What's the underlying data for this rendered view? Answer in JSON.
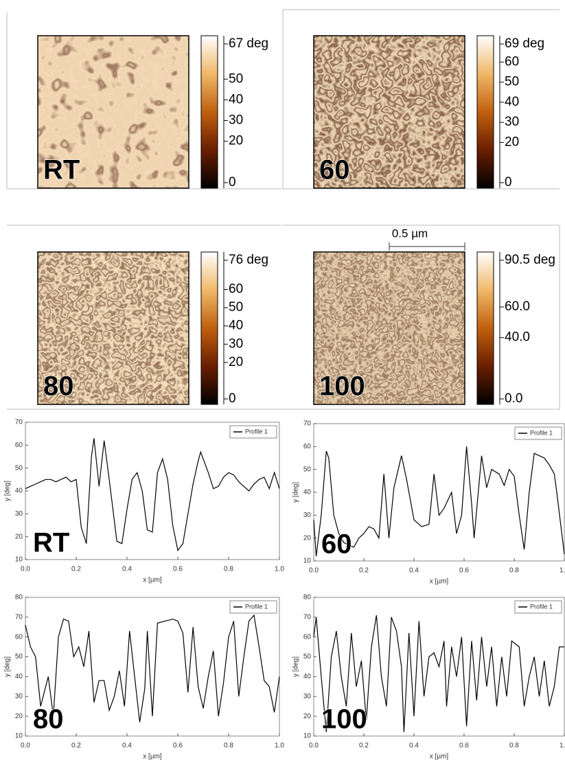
{
  "chart_data": [
    {
      "type": "image",
      "label": "RT",
      "clim": [
        0,
        67
      ],
      "cticks": [
        {
          "value": 67,
          "label": "67 deg"
        },
        50,
        40,
        30,
        20,
        0
      ]
    },
    {
      "type": "image",
      "label": "60",
      "clim": [
        0,
        69
      ],
      "cticks": [
        {
          "value": 69,
          "label": "69 deg"
        },
        60,
        50,
        40,
        30,
        20,
        0
      ]
    },
    {
      "type": "image",
      "label": "80",
      "clim": [
        0,
        76
      ],
      "cticks": [
        {
          "value": 76,
          "label": "76 deg"
        },
        60,
        50,
        40,
        30,
        20,
        0
      ]
    },
    {
      "type": "image",
      "label": "100",
      "scalebar": "0.5 µm",
      "clim": [
        0,
        90.5
      ],
      "cticks": [
        {
          "value": 90.5,
          "label": "90.5 deg"
        },
        {
          "value": 60,
          "label": "60.0"
        },
        {
          "value": 40,
          "label": "40.0"
        },
        {
          "value": 0,
          "label": "0.0"
        }
      ]
    },
    {
      "type": "line",
      "label": "RT",
      "xlabel": "x [µm]",
      "ylabel": "y [deg]",
      "xlim": [
        0,
        1.0
      ],
      "ylim": [
        10,
        70
      ],
      "xticks": [
        {
          "value": 0,
          "label": "0.0"
        },
        {
          "value": 0.2,
          "label": "0.2"
        },
        {
          "value": 0.4,
          "label": "0.4"
        },
        {
          "value": 0.6,
          "label": "0.6"
        },
        {
          "value": 0.8,
          "label": "0.8"
        },
        {
          "value": 1.0,
          "label": "1.0"
        }
      ],
      "yticks": [
        10,
        20,
        30,
        40,
        50,
        60,
        70
      ],
      "x": [
        0,
        0.02,
        0.04,
        0.06,
        0.08,
        0.1,
        0.12,
        0.14,
        0.16,
        0.18,
        0.2,
        0.22,
        0.24,
        0.26,
        0.27,
        0.29,
        0.31,
        0.33,
        0.36,
        0.38,
        0.4,
        0.42,
        0.44,
        0.46,
        0.48,
        0.5,
        0.52,
        0.54,
        0.56,
        0.58,
        0.6,
        0.62,
        0.64,
        0.66,
        0.68,
        0.69,
        0.72,
        0.74,
        0.76,
        0.78,
        0.8,
        0.82,
        0.84,
        0.86,
        0.88,
        0.9,
        0.92,
        0.94,
        0.96,
        0.98,
        1.0
      ],
      "series": [
        {
          "name": "Profile 1",
          "color": "#000000",
          "values": [
            41,
            42,
            43,
            44,
            45,
            45,
            44,
            45,
            46,
            44,
            45,
            24,
            17,
            55,
            63,
            42,
            62,
            45,
            18,
            17,
            32,
            45,
            48,
            40,
            23,
            22,
            48,
            54,
            45,
            25,
            14,
            17,
            30,
            43,
            53,
            57,
            48,
            41,
            42,
            46,
            48,
            47,
            44,
            42,
            40,
            43,
            45,
            46,
            41,
            48,
            41
          ]
        }
      ]
    },
    {
      "type": "line",
      "label": "60",
      "xlabel": "x [µm]",
      "ylabel": "y [deg]",
      "xlim": [
        0,
        1.0
      ],
      "ylim": [
        10,
        70
      ],
      "xticks": [
        {
          "value": 0,
          "label": "0.0"
        },
        {
          "value": 0.2,
          "label": "0.2"
        },
        {
          "value": 0.4,
          "label": "0.4"
        },
        {
          "value": 0.6,
          "label": "0.6"
        },
        {
          "value": 0.8,
          "label": "0.8"
        },
        {
          "value": 1.0,
          "label": "1.0"
        }
      ],
      "yticks": [
        10,
        20,
        30,
        40,
        50,
        60,
        70
      ],
      "x": [
        0,
        0.01,
        0.03,
        0.05,
        0.06,
        0.08,
        0.1,
        0.12,
        0.14,
        0.16,
        0.18,
        0.2,
        0.22,
        0.24,
        0.26,
        0.28,
        0.3,
        0.32,
        0.35,
        0.37,
        0.4,
        0.43,
        0.46,
        0.48,
        0.5,
        0.52,
        0.55,
        0.57,
        0.59,
        0.61,
        0.63,
        0.64,
        0.67,
        0.69,
        0.71,
        0.74,
        0.76,
        0.78,
        0.8,
        0.82,
        0.84,
        0.86,
        0.88,
        0.9,
        0.92,
        0.94,
        0.96,
        0.97,
        1.0
      ],
      "series": [
        {
          "name": "Profile 1",
          "color": "#000000",
          "values": [
            28,
            12,
            30,
            58,
            55,
            30,
            22,
            18,
            17,
            16,
            20,
            22,
            25,
            24,
            20,
            48,
            20,
            42,
            56,
            46,
            28,
            25,
            26,
            48,
            30,
            33,
            40,
            22,
            30,
            60,
            35,
            20,
            56,
            42,
            50,
            48,
            43,
            50,
            47,
            30,
            15,
            40,
            57,
            56,
            55,
            52,
            48,
            40,
            13
          ]
        }
      ]
    },
    {
      "type": "line",
      "label": "80",
      "xlabel": "x [µm]",
      "ylabel": "y [deg]",
      "xlim": [
        0,
        1.0
      ],
      "ylim": [
        10,
        80
      ],
      "xticks": [
        {
          "value": 0,
          "label": "0.0"
        },
        {
          "value": 0.2,
          "label": "0.2"
        },
        {
          "value": 0.4,
          "label": "0.4"
        },
        {
          "value": 0.6,
          "label": "0.6"
        },
        {
          "value": 0.8,
          "label": "0.8"
        },
        {
          "value": 1.0,
          "label": "1.0"
        }
      ],
      "yticks": [
        10,
        20,
        30,
        40,
        50,
        60,
        70,
        80
      ],
      "x": [
        0,
        0.02,
        0.04,
        0.06,
        0.08,
        0.09,
        0.11,
        0.13,
        0.15,
        0.17,
        0.19,
        0.21,
        0.23,
        0.25,
        0.27,
        0.29,
        0.31,
        0.33,
        0.35,
        0.37,
        0.39,
        0.41,
        0.43,
        0.45,
        0.47,
        0.48,
        0.5,
        0.52,
        0.55,
        0.58,
        0.6,
        0.62,
        0.64,
        0.66,
        0.68,
        0.7,
        0.72,
        0.74,
        0.76,
        0.78,
        0.8,
        0.82,
        0.84,
        0.86,
        0.88,
        0.9,
        0.92,
        0.94,
        0.96,
        0.98,
        1.0
      ],
      "series": [
        {
          "name": "Profile 1",
          "color": "#000000",
          "values": [
            66,
            55,
            50,
            25,
            35,
            40,
            20,
            60,
            69,
            68,
            50,
            55,
            45,
            63,
            27,
            38,
            38,
            23,
            30,
            43,
            25,
            63,
            40,
            17,
            34,
            63,
            20,
            67,
            68,
            69,
            68,
            62,
            32,
            65,
            35,
            24,
            40,
            53,
            20,
            37,
            60,
            68,
            30,
            50,
            68,
            71,
            55,
            38,
            35,
            22,
            40
          ]
        }
      ]
    },
    {
      "type": "line",
      "label": "100",
      "xlabel": "x [µm]",
      "ylabel": "y [deg]",
      "xlim": [
        0,
        1.0
      ],
      "ylim": [
        10,
        80
      ],
      "xticks": [
        {
          "value": 0,
          "label": "0.0"
        },
        {
          "value": 0.2,
          "label": "0.2"
        },
        {
          "value": 0.4,
          "label": "0.4"
        },
        {
          "value": 0.6,
          "label": "0.6"
        },
        {
          "value": 0.8,
          "label": "0.8"
        },
        {
          "value": 1.0,
          "label": "1.0"
        }
      ],
      "yticks": [
        10,
        20,
        30,
        40,
        50,
        60,
        70,
        80
      ],
      "x": [
        0,
        0.01,
        0.03,
        0.05,
        0.07,
        0.09,
        0.11,
        0.13,
        0.15,
        0.17,
        0.19,
        0.21,
        0.23,
        0.25,
        0.27,
        0.29,
        0.31,
        0.33,
        0.35,
        0.36,
        0.38,
        0.4,
        0.42,
        0.44,
        0.46,
        0.48,
        0.5,
        0.52,
        0.53,
        0.55,
        0.57,
        0.59,
        0.61,
        0.63,
        0.65,
        0.67,
        0.69,
        0.71,
        0.73,
        0.75,
        0.77,
        0.79,
        0.82,
        0.84,
        0.86,
        0.88,
        0.9,
        0.92,
        0.94,
        0.96,
        0.98,
        1.0
      ],
      "series": [
        {
          "name": "Profile 1",
          "color": "#000000",
          "values": [
            60,
            70,
            40,
            12,
            50,
            63,
            40,
            25,
            62,
            35,
            48,
            18,
            55,
            71,
            40,
            25,
            70,
            63,
            45,
            12,
            62,
            20,
            68,
            30,
            50,
            52,
            45,
            58,
            25,
            55,
            40,
            60,
            15,
            58,
            28,
            60,
            35,
            55,
            25,
            50,
            30,
            58,
            55,
            25,
            40,
            50,
            30,
            48,
            25,
            35,
            55,
            55
          ]
        }
      ]
    }
  ]
}
